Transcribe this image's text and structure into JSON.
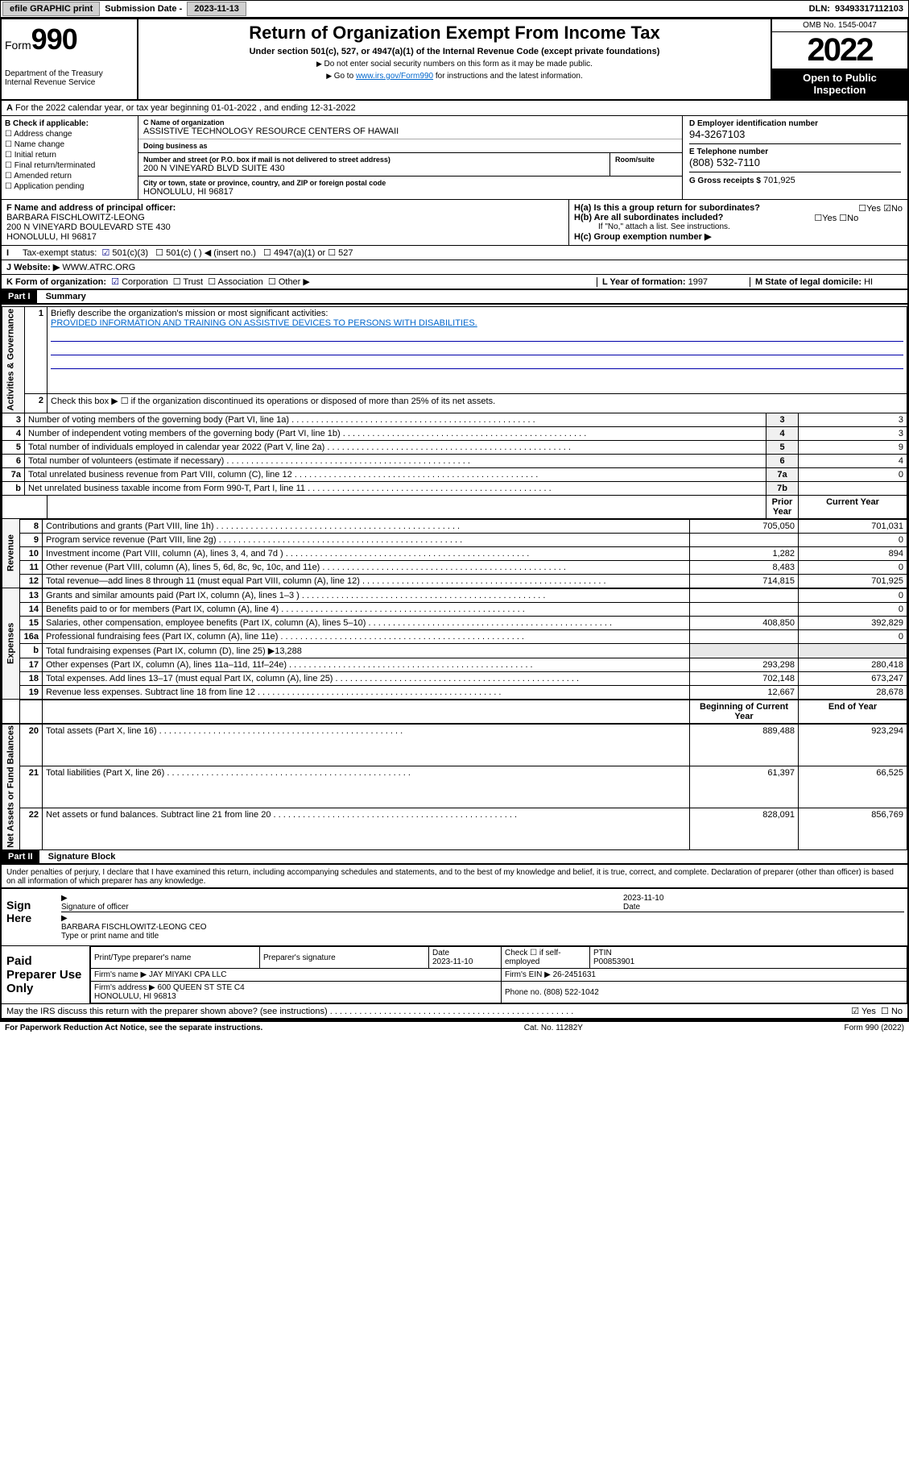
{
  "topbar": {
    "efile": "efile GRAPHIC print",
    "subdate_lbl": "Submission Date -",
    "subdate": "2023-11-13",
    "dln_lbl": "DLN:",
    "dln": "93493317112103"
  },
  "header": {
    "form_word": "Form",
    "form_num": "990",
    "dept": "Department of the Treasury\nInternal Revenue Service",
    "title": "Return of Organization Exempt From Income Tax",
    "sub": "Under section 501(c), 527, or 4947(a)(1) of the Internal Revenue Code (except private foundations)",
    "note1": "Do not enter social security numbers on this form as it may be made public.",
    "note2_pre": "Go to ",
    "note2_link": "www.irs.gov/Form990",
    "note2_post": " for instructions and the latest information.",
    "omb": "OMB No. 1545-0047",
    "year": "2022",
    "open": "Open to Public Inspection"
  },
  "line_a": "For the 2022 calendar year, or tax year beginning 01-01-2022   , and ending 12-31-2022",
  "box_b": {
    "label": "B Check if applicable:",
    "items": [
      "Address change",
      "Name change",
      "Initial return",
      "Final return/terminated",
      "Amended return",
      "Application pending"
    ]
  },
  "box_c": {
    "name_lbl": "C Name of organization",
    "name": "ASSISTIVE TECHNOLOGY RESOURCE CENTERS OF HAWAII",
    "dba_lbl": "Doing business as",
    "dba": "",
    "addr_lbl": "Number and street (or P.O. box if mail is not delivered to street address)",
    "addr": "200 N VINEYARD BLVD SUITE 430",
    "room_lbl": "Room/suite",
    "city_lbl": "City or town, state or province, country, and ZIP or foreign postal code",
    "city": "HONOLULU, HI  96817"
  },
  "box_d": {
    "lbl": "D Employer identification number",
    "val": "94-3267103"
  },
  "box_e": {
    "lbl": "E Telephone number",
    "val": "(808) 532-7110"
  },
  "box_g": {
    "lbl": "G Gross receipts $",
    "val": "701,925"
  },
  "box_f": {
    "lbl": "F Name and address of principal officer:",
    "name": "BARBARA FISCHLOWITZ-LEONG",
    "addr": "200 N VINEYARD BOULEVARD STE 430\nHONOLULU, HI  96817"
  },
  "box_h": {
    "a": "H(a)  Is this a group return for subordinates?",
    "a_ans": "No",
    "b": "H(b)  Are all subordinates included?",
    "b_note": "If \"No,\" attach a list. See instructions.",
    "c": "H(c)  Group exemption number ▶"
  },
  "box_i": {
    "lbl": "Tax-exempt status:",
    "c3": "501(c)(3)",
    "c": "501(c) (   ) ◀ (insert no.)",
    "a1": "4947(a)(1) or",
    "s527": "527"
  },
  "box_j": {
    "lbl": "J   Website: ▶",
    "val": "WWW.ATRC.ORG"
  },
  "box_k": {
    "lbl": "K Form of organization:",
    "corp": "Corporation",
    "trust": "Trust",
    "assoc": "Association",
    "other": "Other ▶"
  },
  "box_l": {
    "lbl": "L Year of formation:",
    "val": "1997"
  },
  "box_m": {
    "lbl": "M State of legal domicile:",
    "val": "HI"
  },
  "part1": {
    "hdr": "Part I",
    "title": "Summary",
    "q1": "Briefly describe the organization's mission or most significant activities:",
    "mission": "PROVIDED INFORMATION AND TRAINING ON ASSISTIVE DEVICES TO PERSONS WITH DISABILITIES.",
    "q2": "Check this box ▶ ☐  if the organization discontinued its operations or disposed of more than 25% of its net assets.",
    "rows_ag": [
      {
        "n": "3",
        "t": "Number of voting members of the governing body (Part VI, line 1a)",
        "box": "3",
        "v": "3"
      },
      {
        "n": "4",
        "t": "Number of independent voting members of the governing body (Part VI, line 1b)",
        "box": "4",
        "v": "3"
      },
      {
        "n": "5",
        "t": "Total number of individuals employed in calendar year 2022 (Part V, line 2a)",
        "box": "5",
        "v": "9"
      },
      {
        "n": "6",
        "t": "Total number of volunteers (estimate if necessary)",
        "box": "6",
        "v": "4"
      },
      {
        "n": "7a",
        "t": "Total unrelated business revenue from Part VIII, column (C), line 12",
        "box": "7a",
        "v": "0"
      },
      {
        "n": "b",
        "t": "Net unrelated business taxable income from Form 990-T, Part I, line 11",
        "box": "7b",
        "v": ""
      }
    ],
    "col_prior": "Prior Year",
    "col_curr": "Current Year",
    "rows_rev": [
      {
        "n": "8",
        "t": "Contributions and grants (Part VIII, line 1h)",
        "p": "705,050",
        "c": "701,031"
      },
      {
        "n": "9",
        "t": "Program service revenue (Part VIII, line 2g)",
        "p": "",
        "c": "0"
      },
      {
        "n": "10",
        "t": "Investment income (Part VIII, column (A), lines 3, 4, and 7d )",
        "p": "1,282",
        "c": "894"
      },
      {
        "n": "11",
        "t": "Other revenue (Part VIII, column (A), lines 5, 6d, 8c, 9c, 10c, and 11e)",
        "p": "8,483",
        "c": "0"
      },
      {
        "n": "12",
        "t": "Total revenue—add lines 8 through 11 (must equal Part VIII, column (A), line 12)",
        "p": "714,815",
        "c": "701,925"
      }
    ],
    "rows_exp": [
      {
        "n": "13",
        "t": "Grants and similar amounts paid (Part IX, column (A), lines 1–3 )",
        "p": "",
        "c": "0"
      },
      {
        "n": "14",
        "t": "Benefits paid to or for members (Part IX, column (A), line 4)",
        "p": "",
        "c": "0"
      },
      {
        "n": "15",
        "t": "Salaries, other compensation, employee benefits (Part IX, column (A), lines 5–10)",
        "p": "408,850",
        "c": "392,829"
      },
      {
        "n": "16a",
        "t": "Professional fundraising fees (Part IX, column (A), line 11e)",
        "p": "",
        "c": "0"
      },
      {
        "n": "b",
        "t": "Total fundraising expenses (Part IX, column (D), line 25) ▶13,288",
        "p": null,
        "c": null
      },
      {
        "n": "17",
        "t": "Other expenses (Part IX, column (A), lines 11a–11d, 11f–24e)",
        "p": "293,298",
        "c": "280,418"
      },
      {
        "n": "18",
        "t": "Total expenses. Add lines 13–17 (must equal Part IX, column (A), line 25)",
        "p": "702,148",
        "c": "673,247"
      },
      {
        "n": "19",
        "t": "Revenue less expenses. Subtract line 18 from line 12",
        "p": "12,667",
        "c": "28,678"
      }
    ],
    "col_beg": "Beginning of Current Year",
    "col_end": "End of Year",
    "rows_na": [
      {
        "n": "20",
        "t": "Total assets (Part X, line 16)",
        "p": "889,488",
        "c": "923,294"
      },
      {
        "n": "21",
        "t": "Total liabilities (Part X, line 26)",
        "p": "61,397",
        "c": "66,525"
      },
      {
        "n": "22",
        "t": "Net assets or fund balances. Subtract line 21 from line 20",
        "p": "828,091",
        "c": "856,769"
      }
    ],
    "vlabs": {
      "ag": "Activities & Governance",
      "rev": "Revenue",
      "exp": "Expenses",
      "na": "Net Assets or Fund Balances"
    }
  },
  "part2": {
    "hdr": "Part II",
    "title": "Signature Block",
    "decl": "Under penalties of perjury, I declare that I have examined this return, including accompanying schedules and statements, and to the best of my knowledge and belief, it is true, correct, and complete. Declaration of preparer (other than officer) is based on all information of which preparer has any knowledge."
  },
  "sign": {
    "here": "Sign Here",
    "sigoff": "Signature of officer",
    "date_lbl": "Date",
    "date": "2023-11-10",
    "name": "BARBARA FISCHLOWITZ-LEONG CEO",
    "name_lbl": "Type or print name and title"
  },
  "prep": {
    "left": "Paid Preparer Use Only",
    "h1": "Print/Type preparer's name",
    "h2": "Preparer's signature",
    "h3": "Date",
    "h3v": "2023-11-10",
    "h4": "Check ☐ if self-employed",
    "h5": "PTIN",
    "h5v": "P00853901",
    "firm_lbl": "Firm's name    ▶",
    "firm": "JAY MIYAKI CPA LLC",
    "ein_lbl": "Firm's EIN ▶",
    "ein": "26-2451631",
    "addr_lbl": "Firm's address ▶",
    "addr": "600 QUEEN ST STE C4\nHONOLULU, HI  96813",
    "phone_lbl": "Phone no.",
    "phone": "(808) 522-1042"
  },
  "footer": {
    "q": "May the IRS discuss this return with the preparer shown above? (see instructions)",
    "yes": "Yes",
    "no": "No",
    "pra": "For Paperwork Reduction Act Notice, see the separate instructions.",
    "cat": "Cat. No. 11282Y",
    "form": "Form 990 (2022)"
  }
}
